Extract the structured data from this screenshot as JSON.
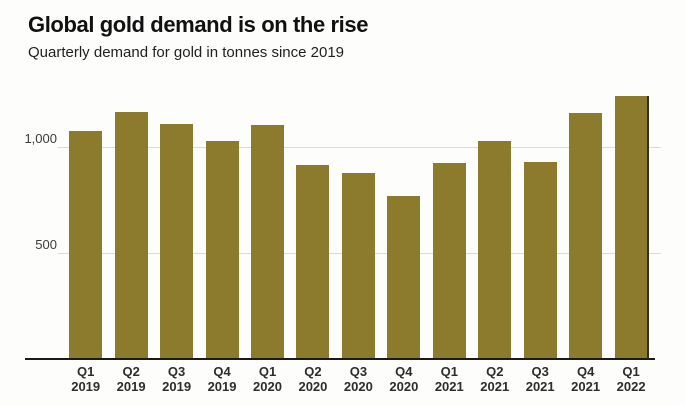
{
  "header": {
    "title": "Global gold demand is on the rise",
    "subtitle": "Quarterly demand for gold in tonnes since 2019"
  },
  "chart_data": {
    "type": "bar",
    "title": "Global gold demand is on the rise",
    "subtitle": "Quarterly demand for gold in tonnes since 2019",
    "unit": "tonnes",
    "categories": [
      "Q1 2019",
      "Q2 2019",
      "Q3 2019",
      "Q4 2019",
      "Q1 2020",
      "Q2 2020",
      "Q3 2020",
      "Q4 2020",
      "Q1 2021",
      "Q2 2021",
      "Q3 2021",
      "Q4 2021",
      "Q1 2022"
    ],
    "values": [
      1075,
      1165,
      1110,
      1030,
      1105,
      915,
      880,
      770,
      925,
      1030,
      930,
      1160,
      1240
    ],
    "ylim": [
      0,
      1270
    ],
    "yticks": [
      {
        "value": 500,
        "label": "500"
      },
      {
        "value": 1000,
        "label": "1,000"
      }
    ],
    "grid": true,
    "legend_position": "none",
    "xlabel": "",
    "ylabel": ""
  },
  "colors": {
    "bar": "#8c7a2d",
    "background": "#fdfdfc",
    "axis": "#1a1a1a",
    "gridline": "#dcdcd7",
    "right_edge_line": "#33301d",
    "title_text": "#111111",
    "label_text": "#2d2d2d"
  }
}
